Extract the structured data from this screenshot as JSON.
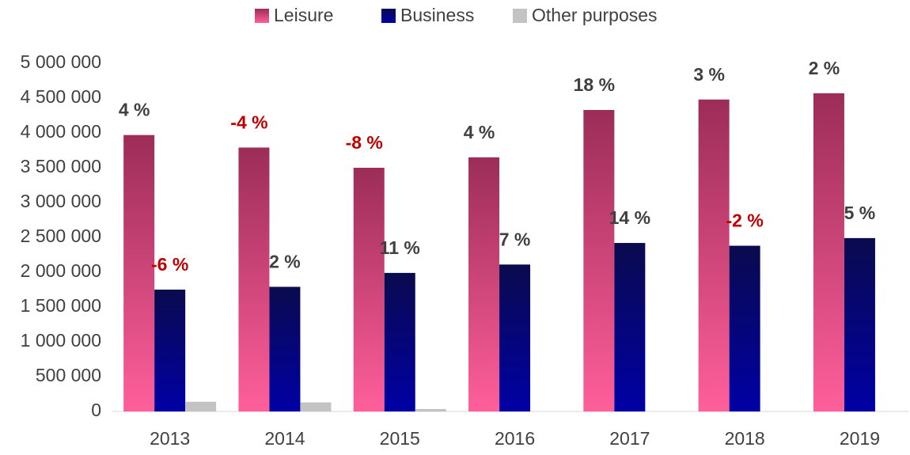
{
  "chart_data": {
    "type": "bar",
    "categories": [
      "2013",
      "2014",
      "2015",
      "2016",
      "2017",
      "2018",
      "2019"
    ],
    "series": [
      {
        "name": "Leisure",
        "color": "#ff5f9a",
        "color_top": "#9c2d58",
        "values": [
          3970000,
          3790000,
          3500000,
          3650000,
          4330000,
          4480000,
          4570000
        ],
        "labels": [
          "4 %",
          "-4 %",
          "-8 %",
          "4 %",
          "18 %",
          "3 %",
          "2 %"
        ]
      },
      {
        "name": "Business",
        "color": "#0000a6",
        "color_top": "#0a0a4e",
        "values": [
          1750000,
          1790000,
          1990000,
          2110000,
          2420000,
          2380000,
          2490000
        ],
        "labels": [
          "-6 %",
          "2 %",
          "11 %",
          "7 %",
          "14 %",
          "-2 %",
          "5 %"
        ]
      },
      {
        "name": "Other purposes",
        "color": "#c3c3c3",
        "color_top": "#c3c3c3",
        "values": [
          140000,
          130000,
          35000,
          0,
          0,
          0,
          0
        ]
      }
    ],
    "ylim": [
      0,
      5000000
    ],
    "yticks": [
      0,
      {
        "value": 500000,
        "label": "500 000"
      },
      {
        "value": 1000000,
        "label": "1 000 000"
      },
      {
        "value": 1500000,
        "label": "1 500 000"
      },
      {
        "value": 2000000,
        "label": "2 000 000"
      },
      {
        "value": 2500000,
        "label": "2 500 000"
      },
      {
        "value": 3000000,
        "label": "3 000 000"
      },
      {
        "value": 3500000,
        "label": "3 500 000"
      },
      {
        "value": 4000000,
        "label": "4 000 000"
      },
      {
        "value": 4500000,
        "label": "4 500 000"
      },
      {
        "value": 5000000,
        "label": "5 000 000"
      }
    ],
    "grid": false,
    "legend": "top",
    "label_color": "#404040",
    "negative_label_color": "#c00000"
  }
}
